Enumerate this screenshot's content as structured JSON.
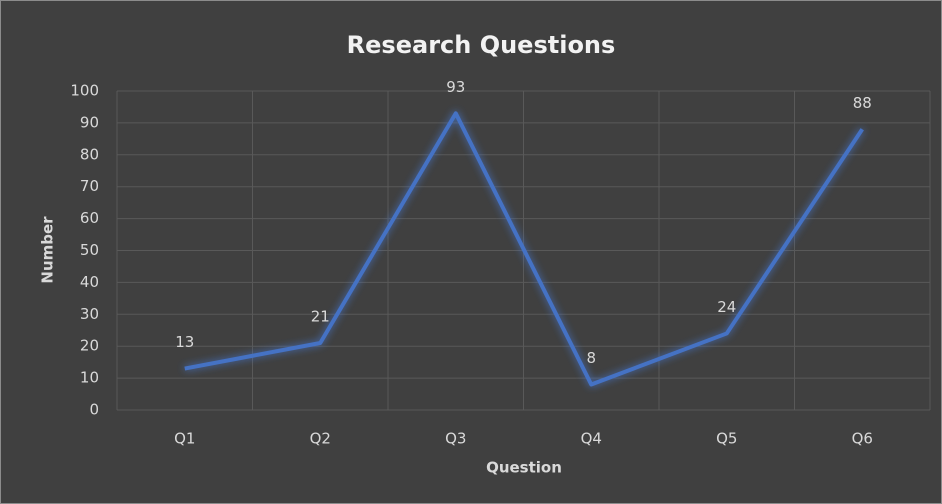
{
  "chart_data": {
    "type": "line",
    "title": "Research Questions",
    "x_label": "Question",
    "y_label": "Number",
    "categories": [
      "Q1",
      "Q2",
      "Q3",
      "Q4",
      "Q5",
      "Q6"
    ],
    "values": [
      13,
      21,
      93,
      8,
      24,
      88
    ],
    "color": "#4472c4",
    "ylim": [
      0,
      100
    ],
    "yticks": [
      0,
      10,
      20,
      30,
      40,
      50,
      60,
      70,
      80,
      90,
      100
    ],
    "grid": true,
    "data_labels": true
  }
}
